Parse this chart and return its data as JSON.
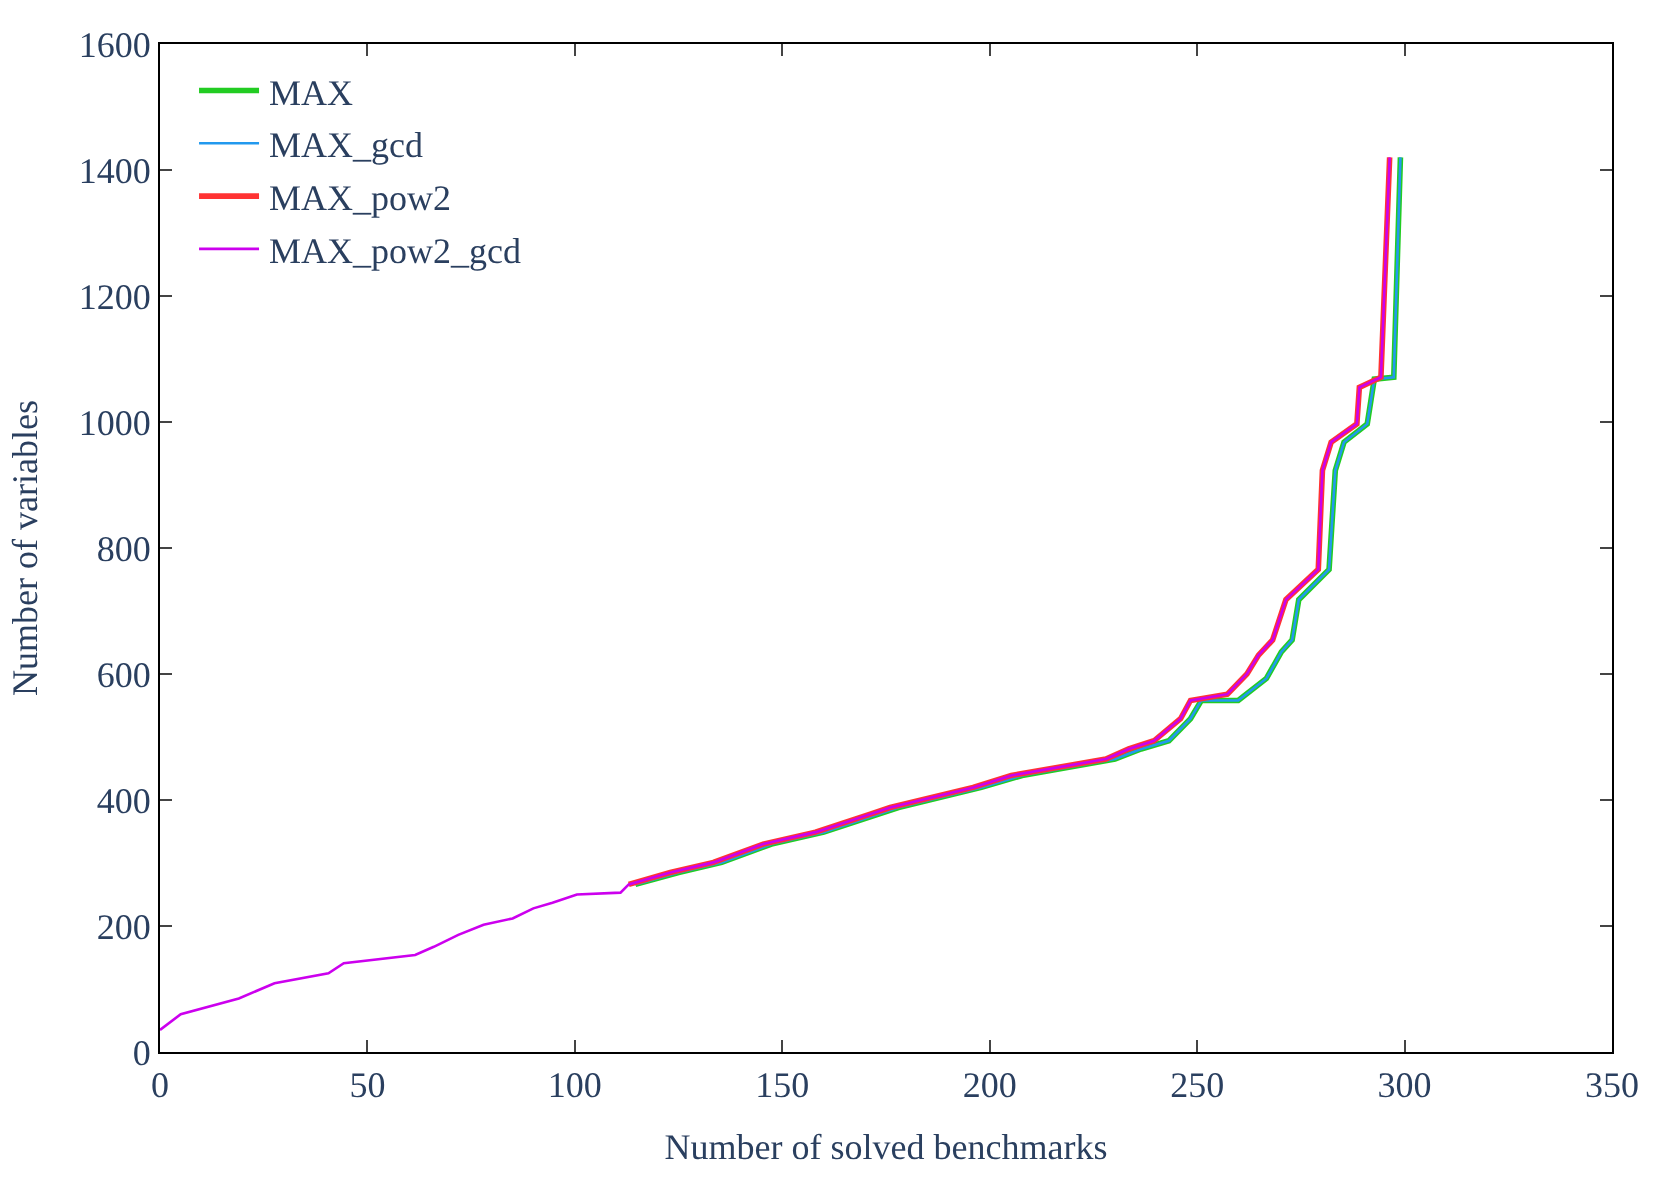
{
  "chart_data": {
    "type": "line",
    "xlabel": "Number of solved benchmarks",
    "ylabel": "Number of variables",
    "xlim": [
      0,
      350
    ],
    "ylim": [
      0,
      1600
    ],
    "xticks": [
      0,
      50,
      100,
      150,
      200,
      250,
      300,
      350
    ],
    "yticks": [
      0,
      200,
      400,
      600,
      800,
      1000,
      1200,
      1400,
      1600
    ],
    "legend": "top left",
    "marker": "none",
    "line_style": "solid",
    "series": [
      {
        "name": "MAX",
        "color": "#22cc22",
        "x": [
          114.6,
          125,
          135.4,
          147.4,
          160,
          173.4,
          178,
          198,
          207.8,
          230.2,
          236.5,
          243.2,
          248.4,
          251,
          259.9,
          266.7,
          270.3,
          272.9,
          274.5,
          281.8,
          283.3,
          285.4,
          291,
          292.7,
          297.4,
          299
        ],
        "values": [
          266,
          285,
          301,
          330,
          349,
          378,
          388,
          420,
          439,
          465,
          481,
          494,
          529,
          558,
          558,
          593,
          635,
          654,
          718,
          766,
          923,
          968,
          997,
          1068,
          1071,
          1420
        ]
      },
      {
        "name": "MAX_gcd",
        "color": "#2299ee",
        "x": [
          114.6,
          125,
          135.4,
          147.4,
          160,
          173.4,
          178,
          198,
          207.8,
          230.2,
          236.5,
          243.2,
          248.4,
          251,
          259.9,
          266.7,
          270.3,
          272.9,
          274.5,
          281.8,
          283.3,
          285.4,
          291,
          292.7,
          297.4,
          299
        ],
        "values": [
          266,
          285,
          301,
          330,
          349,
          378,
          388,
          420,
          439,
          465,
          481,
          494,
          529,
          558,
          558,
          593,
          635,
          654,
          718,
          766,
          923,
          968,
          997,
          1068,
          1071,
          1420
        ]
      },
      {
        "name": "MAX_pow2",
        "color": "#ff3333",
        "x": [
          113,
          123,
          133.4,
          145.4,
          158,
          171.4,
          176,
          196,
          205.2,
          228,
          233.5,
          239.6,
          246,
          248.4,
          257.3,
          262,
          264.8,
          268.2,
          271.4,
          279.2,
          280.2,
          282.3,
          288.5,
          289.1,
          294.3,
          296.4
        ],
        "values": [
          266,
          285,
          301,
          330,
          349,
          378,
          388,
          420,
          439,
          465,
          481,
          494,
          529,
          558,
          568,
          600,
          630,
          654,
          718,
          766,
          923,
          968,
          997,
          1055,
          1071,
          1420
        ]
      },
      {
        "name": "MAX_pow2_gcd",
        "color": "#cc00ee",
        "x": [
          0,
          5,
          19,
          27.6,
          40.6,
          44.3,
          61.5,
          66,
          71.9,
          78,
          85,
          90,
          94.6,
          100.5,
          111,
          113,
          123,
          133.4,
          145.4,
          158,
          171.4,
          176,
          196,
          205.2,
          228,
          233.5,
          239.6,
          246,
          248.4,
          257.3,
          262,
          264.8,
          268.2,
          271.4,
          279.2,
          280.2,
          282.3,
          288.5,
          289.1,
          294.3,
          296.4
        ],
        "values": [
          35,
          60,
          85,
          109,
          125,
          141,
          154,
          167,
          186,
          202,
          212,
          228,
          237,
          250,
          253,
          266,
          285,
          301,
          330,
          349,
          378,
          388,
          420,
          439,
          465,
          481,
          494,
          529,
          558,
          568,
          600,
          630,
          654,
          718,
          766,
          923,
          968,
          997,
          1055,
          1071,
          1420
        ]
      }
    ]
  }
}
